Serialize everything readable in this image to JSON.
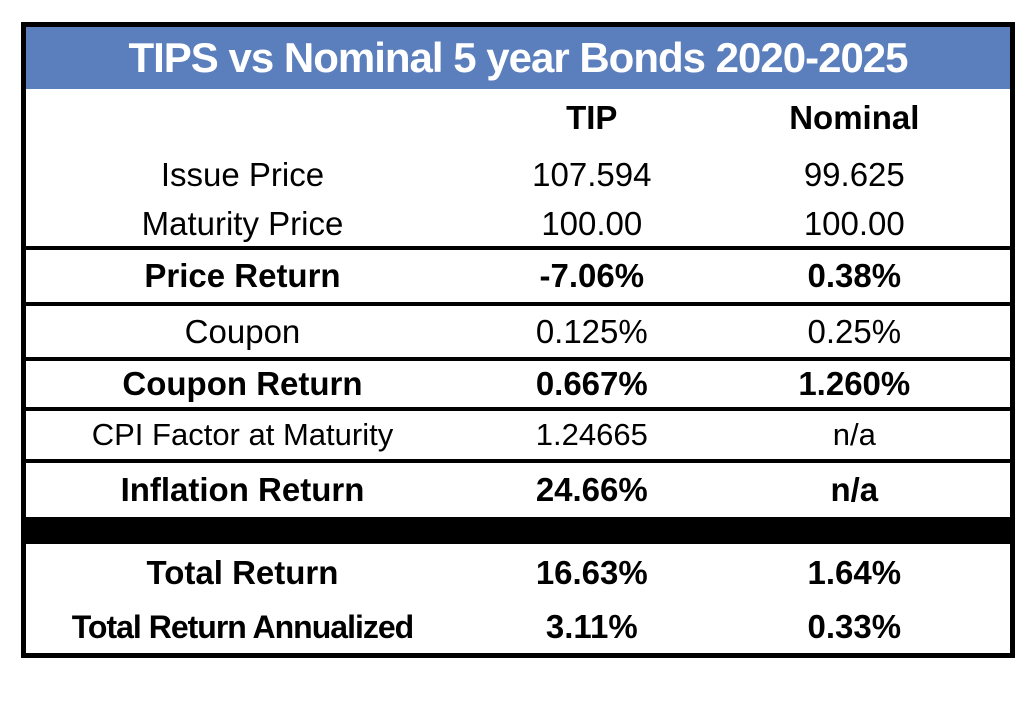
{
  "table": {
    "title": "TIPS vs Nominal 5 year Bonds 2020-2025",
    "columns": [
      "TIP",
      "Nominal"
    ],
    "rows": [
      {
        "label": "Issue Price",
        "tip": "107.594",
        "nominal": "99.625"
      },
      {
        "label": "Maturity Price",
        "tip": "100.00",
        "nominal": "100.00"
      },
      {
        "label": "Price Return",
        "tip": "-7.06%",
        "nominal": "0.38%"
      },
      {
        "label": "Coupon",
        "tip": "0.125%",
        "nominal": "0.25%"
      },
      {
        "label": "Coupon Return",
        "tip": "0.667%",
        "nominal": "1.260%"
      },
      {
        "label": "CPI Factor at Maturity",
        "tip": "1.24665",
        "nominal": "n/a"
      },
      {
        "label": "Inflation Return",
        "tip": "24.66%",
        "nominal": "n/a"
      },
      {
        "label": "Total Return",
        "tip": "16.63%",
        "nominal": "1.64%"
      },
      {
        "label": "Total Return Annualized",
        "tip": "3.11%",
        "nominal": "0.33%"
      }
    ]
  },
  "colors": {
    "title_bg": "#5b7ebd",
    "title_text": "#ffffff",
    "body_text": "#000000",
    "border": "#000000",
    "divider_bg": "#000000",
    "background": "#ffffff"
  }
}
